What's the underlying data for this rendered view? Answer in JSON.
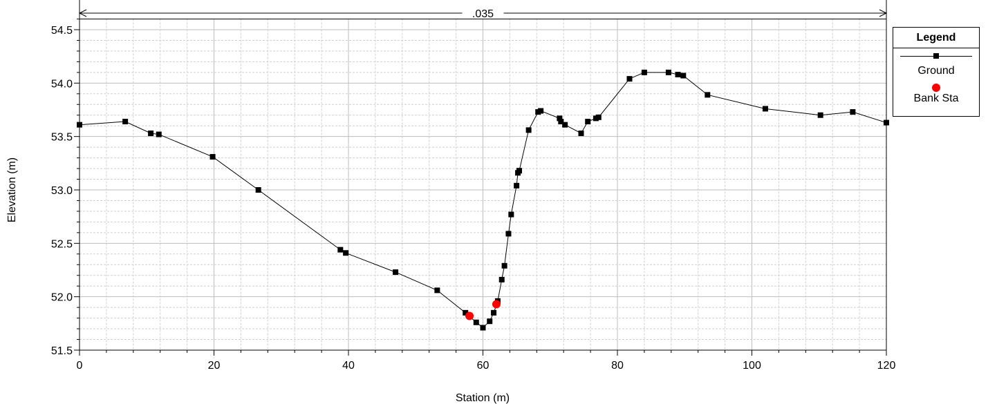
{
  "chart_data": {
    "type": "line",
    "xlabel": "Station (m)",
    "ylabel": "Elevation (m)",
    "xlim": [
      0,
      120
    ],
    "ylim": [
      51.5,
      54.6
    ],
    "x_ticks": [
      "0",
      "20",
      "40",
      "60",
      "80",
      "100",
      "120"
    ],
    "y_ticks": [
      "51.5",
      "52.0",
      "52.5",
      "53.0",
      "53.5",
      "54.0",
      "54.5"
    ],
    "grid": true,
    "legend_title": "Legend",
    "legend_position": "right",
    "manning_label": ".035",
    "series": [
      {
        "name": "Ground",
        "color": "#000000",
        "marker": "square",
        "x": [
          0,
          6.8,
          10.6,
          11.8,
          19.8,
          26.6,
          38.8,
          39.6,
          47.0,
          53.2,
          57.4,
          59.0,
          60.0,
          61.0,
          61.6,
          62.2,
          62.8,
          63.2,
          63.8,
          64.2,
          65.0,
          65.2,
          65.4,
          66.8,
          68.2,
          68.6,
          71.4,
          71.6,
          72.2,
          74.6,
          75.6,
          76.8,
          77.2,
          81.8,
          84.0,
          87.6,
          89.0,
          89.8,
          93.4,
          102.0,
          110.2,
          115.0,
          120.0
        ],
        "y": [
          53.61,
          53.64,
          53.53,
          53.52,
          53.31,
          53.0,
          52.44,
          52.41,
          52.23,
          52.06,
          51.85,
          51.76,
          51.71,
          51.77,
          51.85,
          51.96,
          52.16,
          52.29,
          52.59,
          52.77,
          53.04,
          53.16,
          53.18,
          53.56,
          53.73,
          53.74,
          53.67,
          53.64,
          53.61,
          53.53,
          53.64,
          53.67,
          53.68,
          54.04,
          54.1,
          54.1,
          54.08,
          54.07,
          53.89,
          53.76,
          53.7,
          53.73,
          53.63
        ]
      },
      {
        "name": "Bank Sta",
        "color": "#ff0000",
        "marker": "circle",
        "x": [
          58.0,
          62.0
        ],
        "y": [
          51.82,
          51.93
        ]
      }
    ]
  }
}
